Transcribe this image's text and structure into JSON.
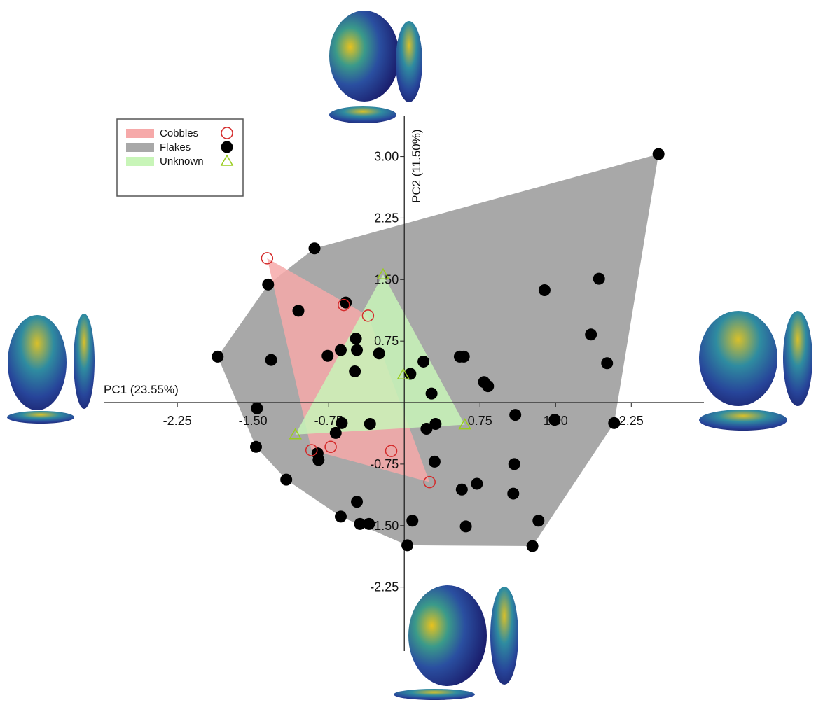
{
  "chart_data": {
    "type": "scatter",
    "x_label": "PC1 (23.55%)",
    "y_label": "PC2 (11.50%)",
    "xlim": [
      -2.98,
      2.97
    ],
    "ylim": [
      -3.03,
      3.5
    ],
    "xticks": [
      -2.25,
      {
        "value": -1.5,
        "label": "-1.50"
      },
      -0.75,
      0.75,
      {
        "value": 1.5,
        "label": "1.50"
      },
      2.25
    ],
    "yticks": [
      {
        "value": 3.0,
        "label": "3.00"
      },
      2.25,
      {
        "value": 1.5,
        "label": "1.50"
      },
      0.75,
      -0.75,
      {
        "value": -1.5,
        "label": "-1.50"
      },
      -2.25
    ],
    "hulls": true,
    "series": [
      {
        "name": "Cobbles",
        "color": "#d42a2a",
        "hull_color": "#f6a9a9",
        "marker": "open-circle",
        "x": [
          -1.36,
          -0.6,
          -0.36,
          -0.92,
          -0.73,
          -0.13,
          0.25
        ],
        "values": [
          1.76,
          1.19,
          1.06,
          -0.58,
          -0.54,
          -0.59,
          -0.97
        ]
      },
      {
        "name": "Flakes",
        "color": "#000000",
        "hull_color": "#a8a8a8",
        "marker": "filled-circle",
        "x": [
          2.52,
          -0.89,
          -1.35,
          -1.85,
          -1.32,
          -1.05,
          -0.58,
          -0.76,
          -0.63,
          -0.48,
          -0.47,
          -0.25,
          -0.49,
          0.06,
          0.19,
          0.27,
          0.55,
          0.59,
          0.79,
          0.83,
          1.39,
          1.93,
          1.85,
          2.01,
          1.1,
          1.49,
          2.08,
          -1.46,
          -1.47,
          -0.86,
          -0.85,
          -1.17,
          -0.62,
          -0.68,
          -0.34,
          0.22,
          0.31,
          0.3,
          0.57,
          0.72,
          1.09,
          1.08,
          -0.47,
          -0.63,
          -0.44,
          -0.35,
          0.08,
          0.61,
          1.33,
          1.27,
          0.03
        ],
        "values": [
          3.03,
          1.88,
          1.44,
          0.56,
          0.52,
          1.12,
          1.22,
          0.57,
          0.64,
          0.78,
          0.64,
          0.6,
          0.38,
          0.35,
          0.5,
          0.11,
          0.56,
          0.56,
          0.25,
          0.2,
          1.37,
          1.51,
          0.83,
          0.48,
          -0.15,
          -0.21,
          -0.25,
          -0.07,
          -0.54,
          -0.62,
          -0.7,
          -0.94,
          -0.25,
          -0.37,
          -0.26,
          -0.32,
          -0.26,
          -0.72,
          -1.06,
          -0.99,
          -0.75,
          -1.11,
          -1.21,
          -1.39,
          -1.48,
          -1.48,
          -1.44,
          -1.51,
          -1.44,
          -1.75,
          -1.74
        ]
      },
      {
        "name": "Unknown",
        "color": "#9acd1e",
        "hull_color": "#c8f5b8",
        "marker": "open-triangle",
        "x": [
          -0.21,
          -0.01,
          -1.08,
          0.6
        ],
        "values": [
          1.56,
          0.34,
          -0.39,
          -0.27
        ]
      }
    ]
  }
}
